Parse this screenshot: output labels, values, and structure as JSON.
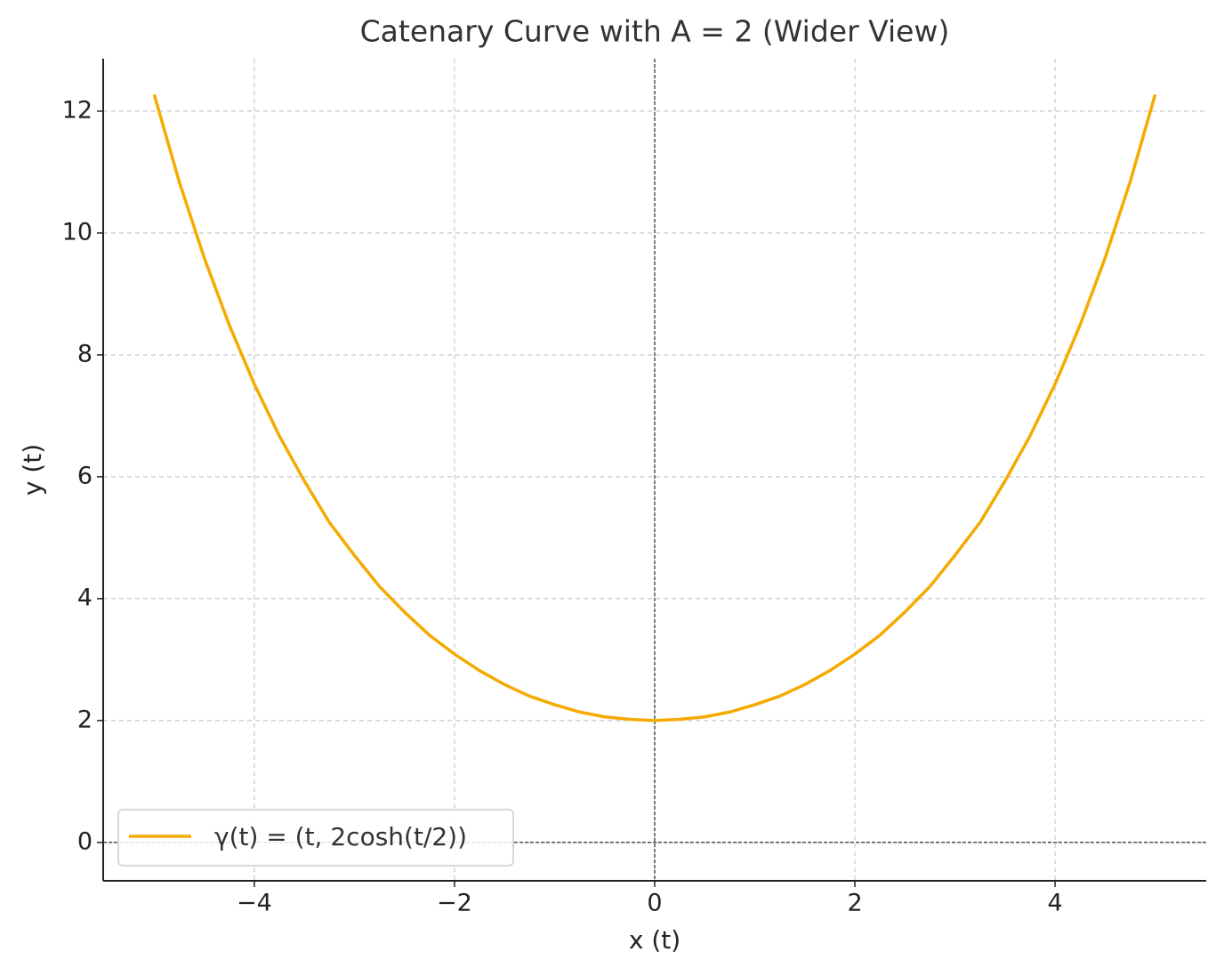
{
  "chart_data": {
    "type": "line",
    "title": "Catenary Curve with A = 2 (Wider View)",
    "x_label": "x (t)",
    "y_label": "y (t)",
    "x": [
      -5,
      -4.75,
      -4.5,
      -4.25,
      -4,
      -3.75,
      -3.5,
      -3.25,
      -3,
      -2.75,
      -2.5,
      -2.25,
      -2,
      -1.75,
      -1.5,
      -1.25,
      -1,
      -0.75,
      -0.5,
      -0.25,
      0,
      0.25,
      0.5,
      0.75,
      1,
      1.25,
      1.5,
      1.75,
      2,
      2.25,
      2.5,
      2.75,
      3,
      3.25,
      3.5,
      3.75,
      4,
      4.25,
      4.5,
      4.75,
      5
    ],
    "series": [
      {
        "name": "γ(t) = (t, 2cosh(t/2))",
        "color": "#f5aa00",
        "values": [
          12.27,
          10.84,
          9.59,
          8.49,
          7.52,
          6.67,
          5.93,
          5.25,
          4.71,
          4.2,
          3.78,
          3.4,
          3.09,
          2.82,
          2.59,
          2.4,
          2.26,
          2.14,
          2.06,
          2.02,
          2,
          2.02,
          2.06,
          2.14,
          2.26,
          2.4,
          2.59,
          2.82,
          3.09,
          3.4,
          3.78,
          4.2,
          4.71,
          5.25,
          5.93,
          6.67,
          7.52,
          8.49,
          9.59,
          10.84,
          12.27
        ]
      }
    ],
    "xlim": [
      -5.51,
      5.51
    ],
    "ylim": [
      -0.63,
      12.86
    ],
    "xticks": [
      {
        "value": -4,
        "label": "−4"
      },
      {
        "value": -2,
        "label": "−2"
      },
      0,
      2,
      4
    ],
    "yticks": [
      0,
      2,
      4,
      6,
      8,
      10,
      12
    ],
    "grid": true,
    "hlines": [
      0
    ],
    "vlines": [
      0
    ],
    "legend": "lower left"
  }
}
